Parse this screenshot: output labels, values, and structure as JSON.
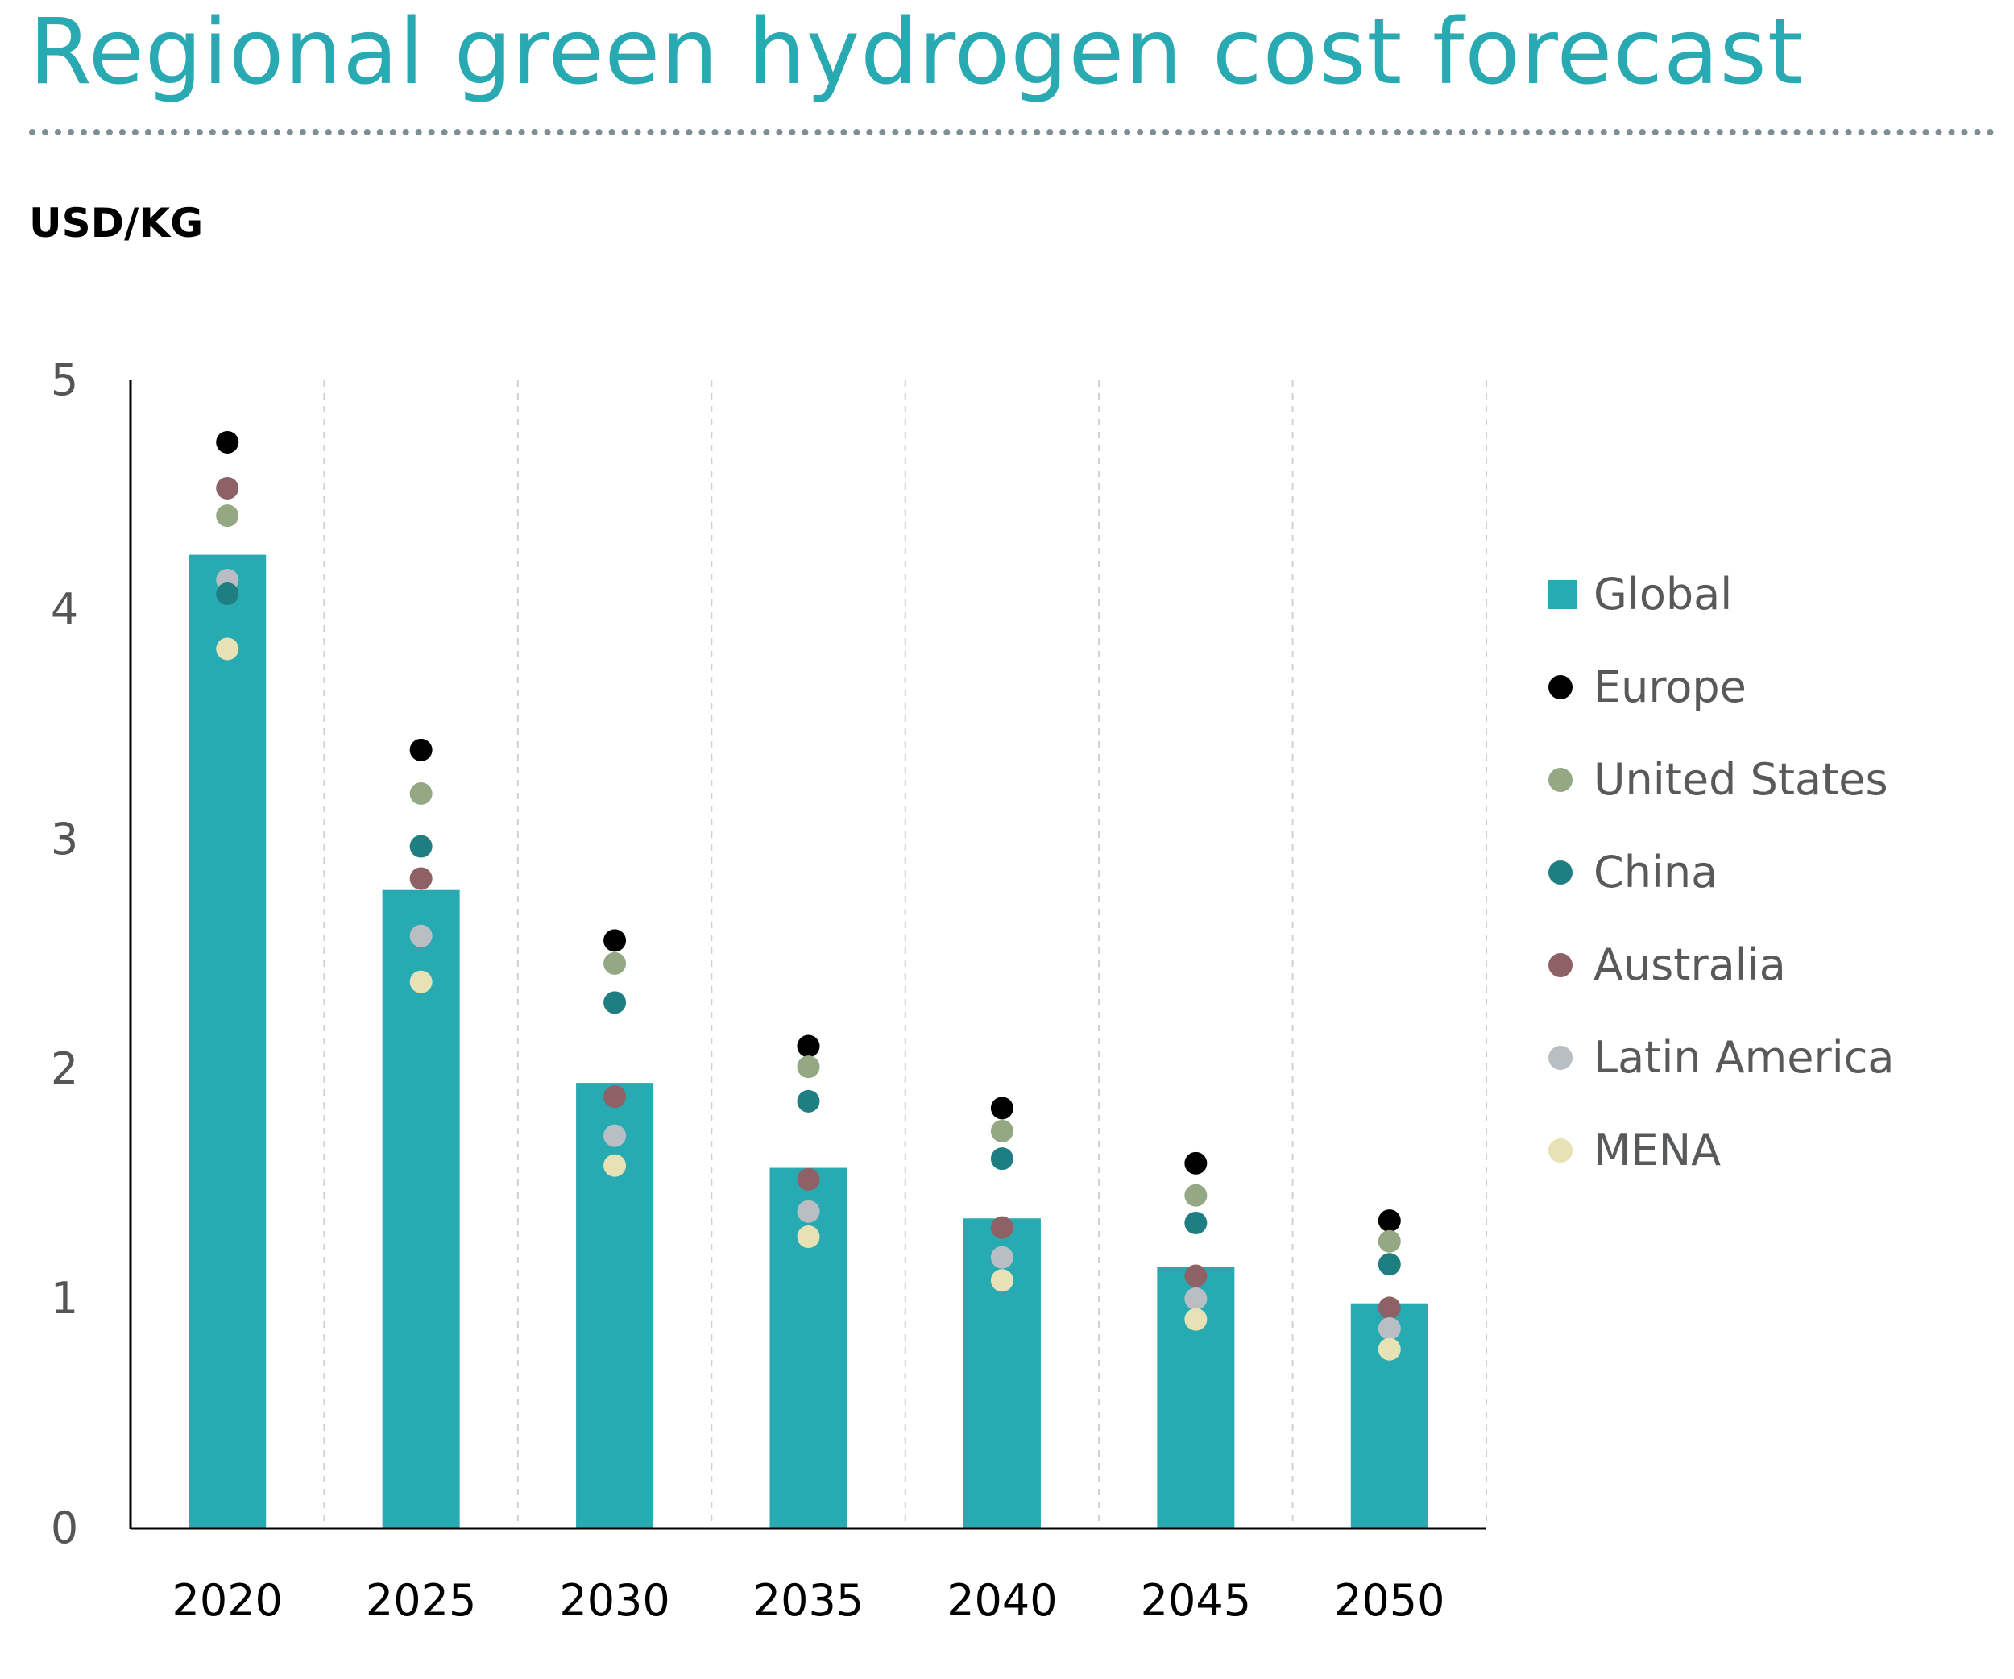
{
  "title": "Regional green hydrogen cost forecast",
  "unit_label": "USD/KG",
  "colors": {
    "title": "#29a9b1",
    "global_bar": "#27aab1",
    "Europe": "#000000",
    "United States": "#93a883",
    "China": "#1f7e82",
    "Australia": "#8d6165",
    "Latin America": "#b8bec3",
    "MENA": "#e6e2b6"
  },
  "legend": [
    {
      "name": "Global",
      "kind": "bar",
      "color": "#27aab1"
    },
    {
      "name": "Europe",
      "kind": "dot",
      "color": "#000000"
    },
    {
      "name": "United States",
      "kind": "dot",
      "color": "#93a883"
    },
    {
      "name": "China",
      "kind": "dot",
      "color": "#1f7e82"
    },
    {
      "name": "Australia",
      "kind": "dot",
      "color": "#8d6165"
    },
    {
      "name": "Latin America",
      "kind": "dot",
      "color": "#b8bec3"
    },
    {
      "name": "MENA",
      "kind": "dot",
      "color": "#e6e2b6"
    }
  ],
  "chart_data": {
    "type": "bar",
    "title": "Regional green hydrogen cost forecast",
    "ylabel": "USD/KG",
    "xlabel": "",
    "categories": [
      "2020",
      "2025",
      "2030",
      "2035",
      "2040",
      "2045",
      "2050"
    ],
    "ylim": [
      0,
      5
    ],
    "yticks": [
      0,
      1,
      2,
      3,
      4,
      5
    ],
    "grid": "vertical dashed",
    "legend_position": "right",
    "bars": {
      "name": "Global",
      "values": [
        4.24,
        2.78,
        1.94,
        1.57,
        1.35,
        1.14,
        0.98
      ]
    },
    "points": [
      {
        "name": "Europe",
        "values": [
          4.73,
          3.39,
          2.56,
          2.1,
          1.83,
          1.59,
          1.34
        ]
      },
      {
        "name": "Australia",
        "values": [
          4.53,
          2.83,
          1.88,
          1.52,
          1.31,
          1.1,
          0.96
        ]
      },
      {
        "name": "United States",
        "values": [
          4.41,
          3.2,
          2.46,
          2.01,
          1.73,
          1.45,
          1.25
        ]
      },
      {
        "name": "Latin America",
        "values": [
          4.13,
          2.58,
          1.71,
          1.38,
          1.18,
          1.0,
          0.87
        ]
      },
      {
        "name": "China",
        "values": [
          4.07,
          2.97,
          2.29,
          1.86,
          1.61,
          1.33,
          1.15
        ]
      },
      {
        "name": "MENA",
        "values": [
          3.83,
          2.38,
          1.58,
          1.27,
          1.08,
          0.91,
          0.78
        ]
      }
    ]
  }
}
